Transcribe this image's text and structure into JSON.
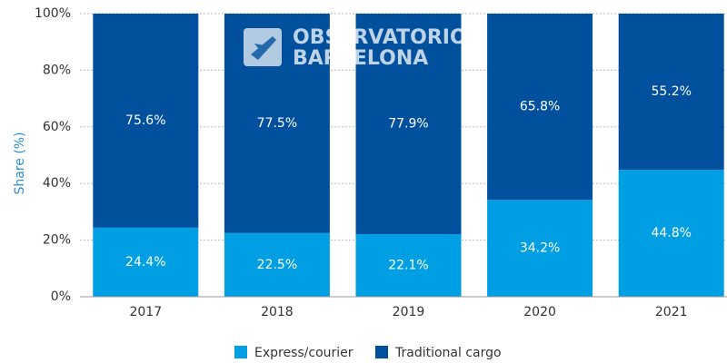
{
  "chart_data": {
    "type": "stacked_bar",
    "ylabel": "Share (%)",
    "watermark": [
      "OBSERVATORIO",
      "BARCELONA"
    ],
    "categories": [
      "2017",
      "2018",
      "2019",
      "2020",
      "2021"
    ],
    "series": [
      {
        "name": "Express/courier",
        "color": "#009fe3",
        "values": [
          24.4,
          22.5,
          22.1,
          34.2,
          44.8
        ],
        "value_labels": [
          "24.4%",
          "22.5%",
          "22.1%",
          "34.2%",
          "44.8%"
        ]
      },
      {
        "name": "Traditional cargo",
        "color": "#00509e",
        "values": [
          75.6,
          77.5,
          77.9,
          65.8,
          55.2
        ],
        "value_labels": [
          "75.6%",
          "77.5%",
          "77.9%",
          "65.8%",
          "55.2%"
        ]
      }
    ],
    "ylim": [
      0,
      100
    ],
    "yticks": [
      {
        "value": 0,
        "label": "0%"
      },
      {
        "value": 20,
        "label": "20%"
      },
      {
        "value": 40,
        "label": "40%"
      },
      {
        "value": 60,
        "label": "60%"
      },
      {
        "value": 80,
        "label": "80%"
      },
      {
        "value": 100,
        "label": "100%"
      }
    ],
    "grid": true
  }
}
